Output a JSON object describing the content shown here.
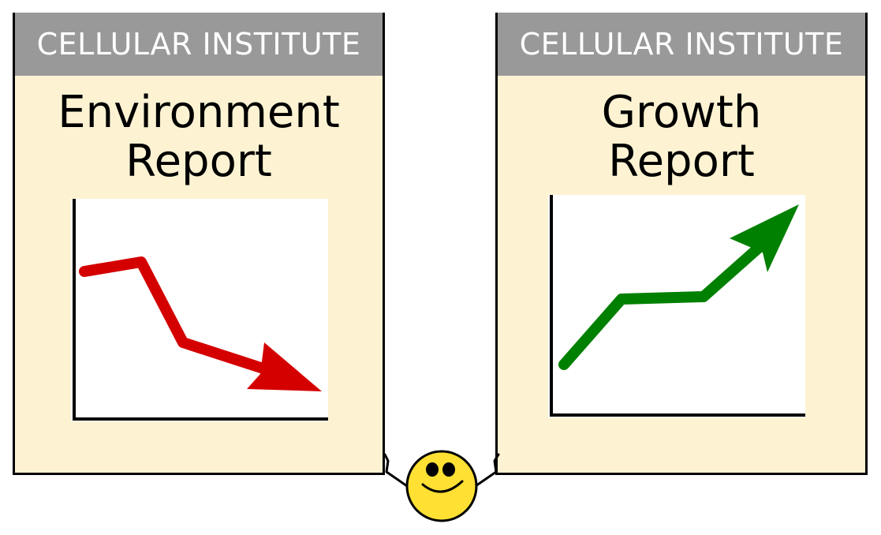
{
  "reports": [
    {
      "header": "CELLULAR INSTITUTE",
      "title_lines": [
        "Environment",
        "Report"
      ],
      "trend": "down",
      "arrow_color": "#d40000",
      "header_color": "#999999",
      "paper_color": "#fdf3d3"
    },
    {
      "header": "CELLULAR INSTITUTE",
      "title_lines": [
        "Growth",
        "Report"
      ],
      "trend": "up",
      "arrow_color": "#008000",
      "header_color": "#999999",
      "paper_color": "#fdf3d3"
    }
  ],
  "character": {
    "icon": "smiley-face-icon",
    "face_color": "#ffe033"
  }
}
